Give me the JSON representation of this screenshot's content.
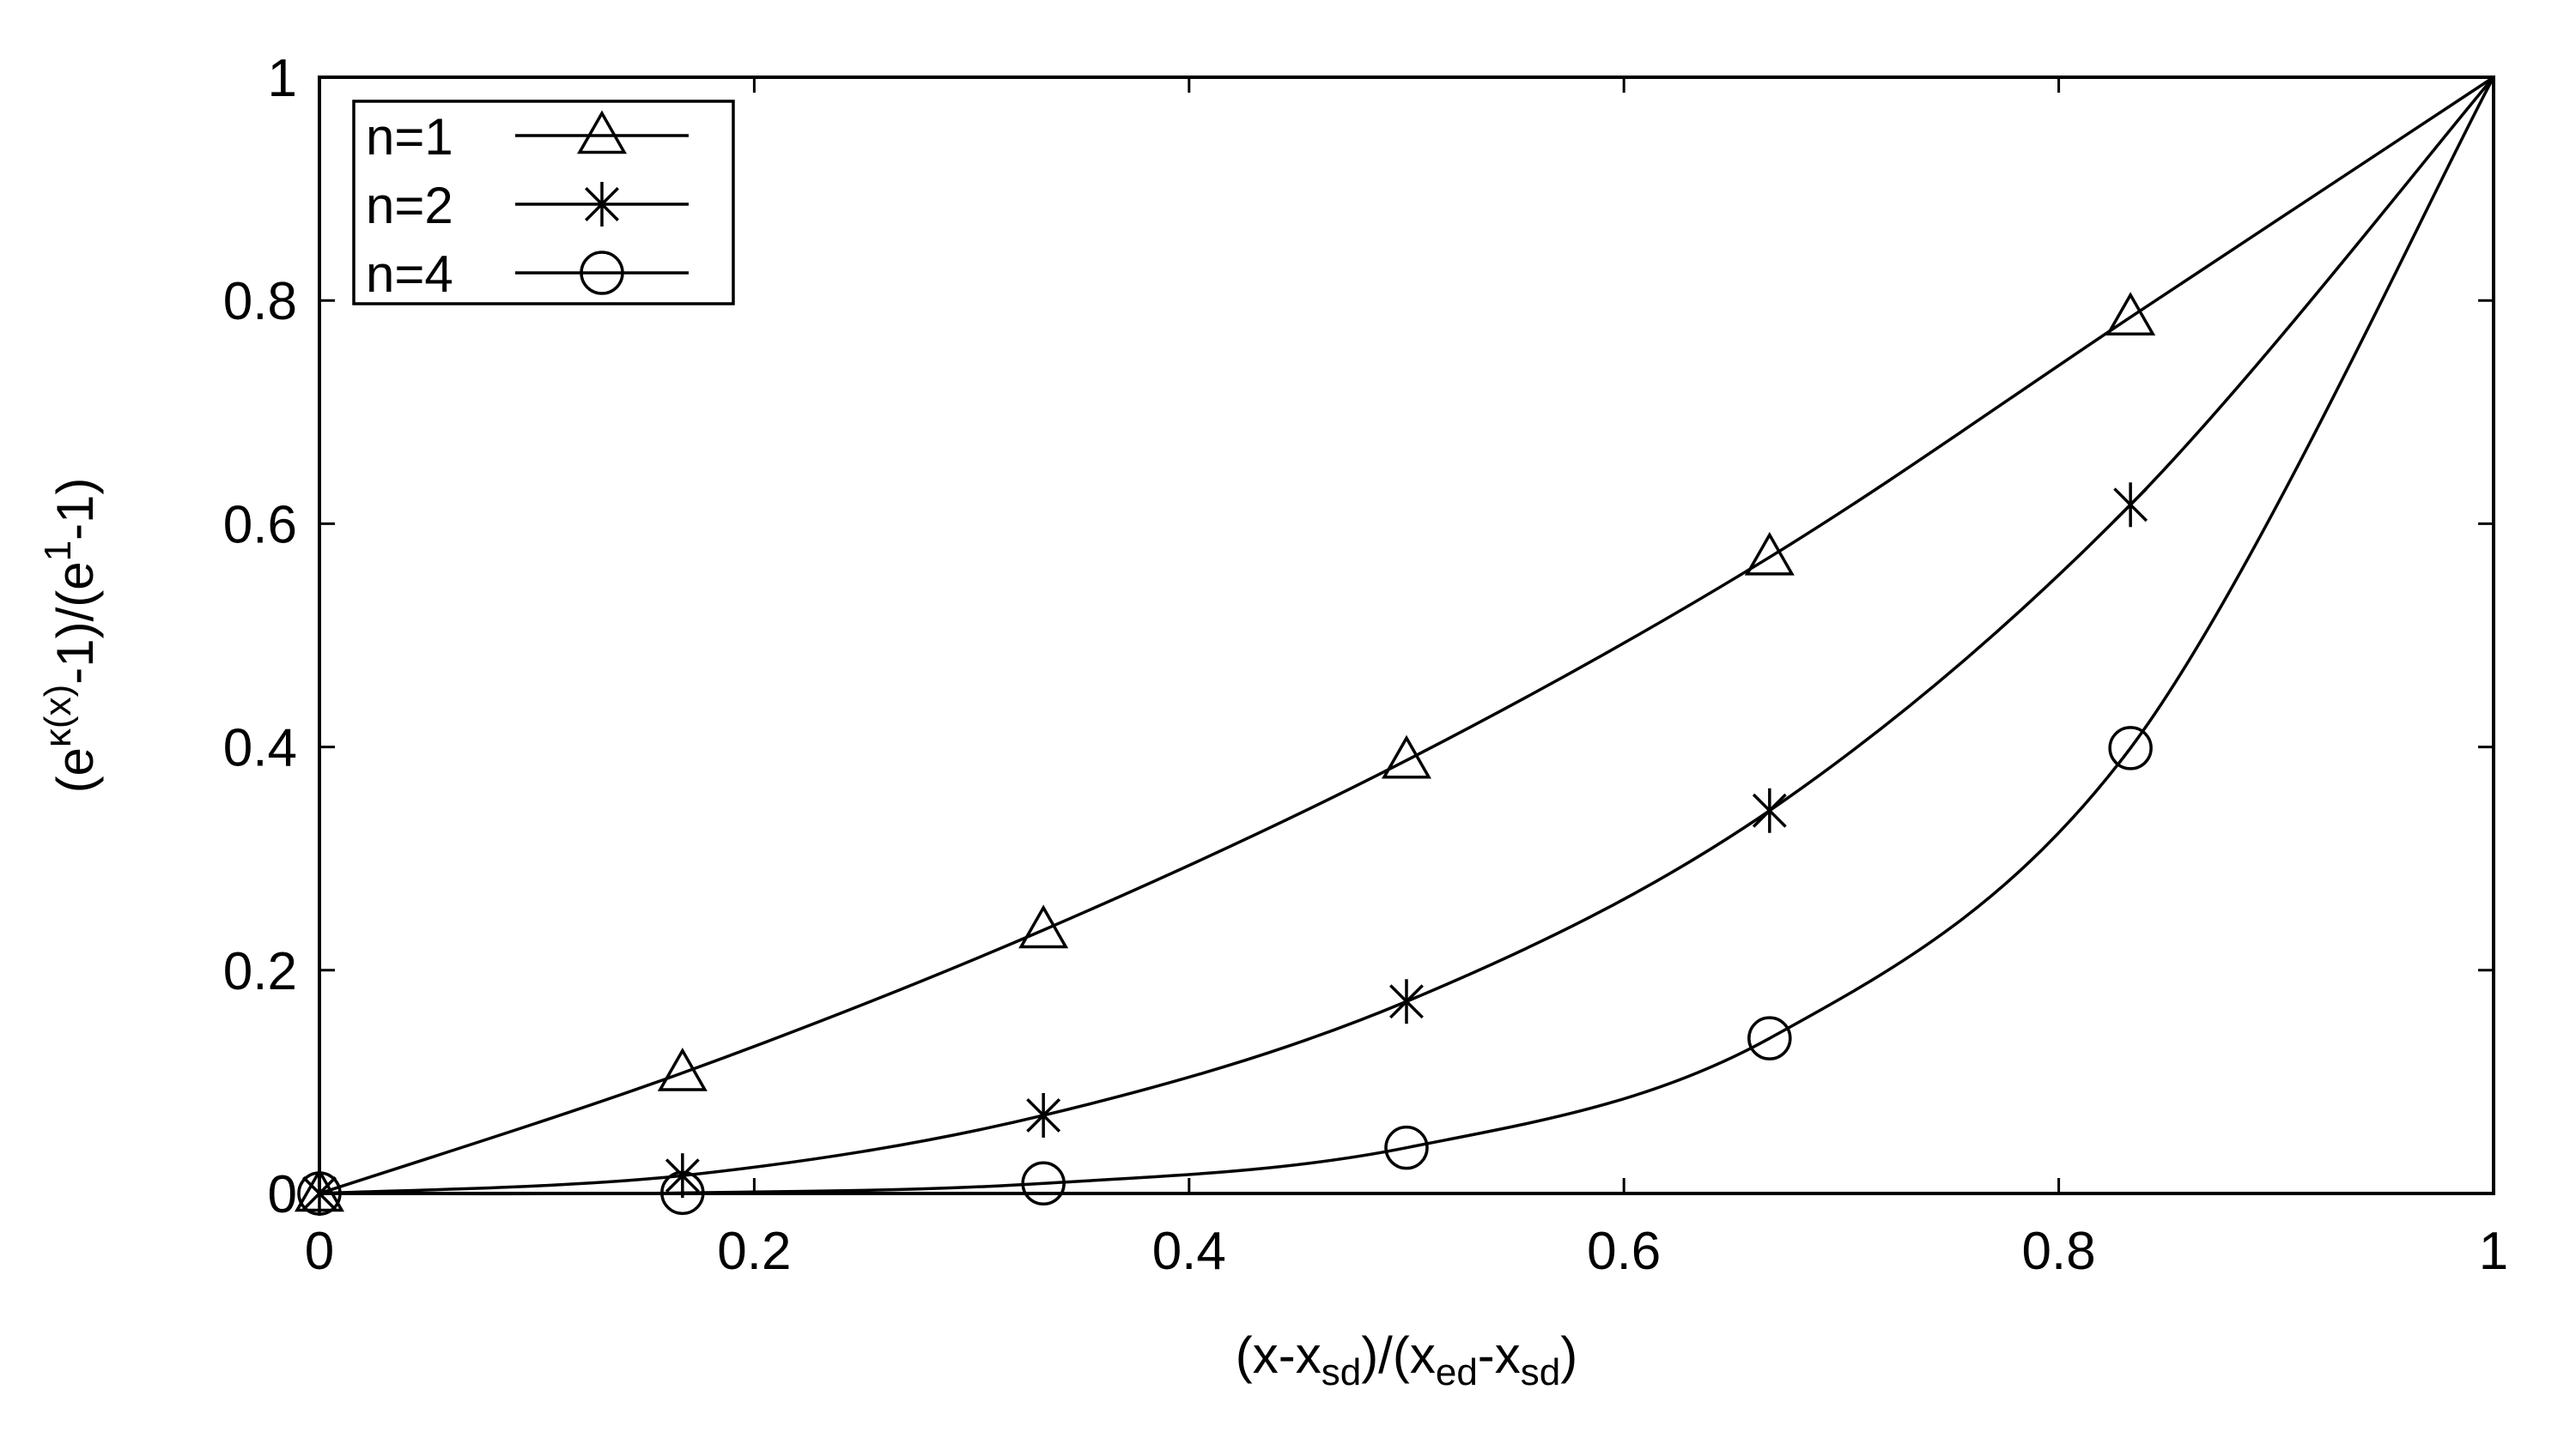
{
  "chart_data": {
    "type": "line",
    "title": "",
    "xlabel": {
      "parts": [
        {
          "t": "(x-x"
        },
        {
          "t": "sd",
          "sub": true
        },
        {
          "t": ")/(x"
        },
        {
          "t": "ed",
          "sub": true
        },
        {
          "t": "-x"
        },
        {
          "t": "sd",
          "sub": true
        },
        {
          "t": ")"
        }
      ]
    },
    "ylabel": {
      "parts": [
        {
          "t": "(e"
        },
        {
          "t": "κ(x)",
          "sup": true
        },
        {
          "t": "-1)/(e"
        },
        {
          "t": "1",
          "sup": true
        },
        {
          "t": "-1)"
        }
      ]
    },
    "xlim": [
      0,
      1
    ],
    "ylim": [
      0,
      1
    ],
    "xticks": [
      0,
      0.2,
      0.4,
      0.6,
      0.8,
      1
    ],
    "xtick_labels": [
      "0",
      "0.2",
      "0.4",
      "0.6",
      "0.8",
      "1"
    ],
    "yticks": [
      0,
      0.2,
      0.4,
      0.6,
      0.8,
      1
    ],
    "ytick_labels": [
      "0",
      "0.2",
      "0.4",
      "0.6",
      "0.8",
      "1"
    ],
    "grid": false,
    "legend_position": "top-left",
    "line_color": "#000000",
    "series": [
      {
        "name": "n=1",
        "marker": "triangle",
        "x": [
          0,
          0.167,
          0.333,
          0.5,
          0.667,
          0.833
        ],
        "y": [
          0,
          0.108,
          0.236,
          0.388,
          0.57,
          0.785
        ]
      },
      {
        "name": "n=2",
        "marker": "star",
        "x": [
          0,
          0.167,
          0.333,
          0.5,
          0.667,
          0.833
        ],
        "y": [
          0,
          0.016,
          0.07,
          0.172,
          0.343,
          0.617
        ]
      },
      {
        "name": "n=4",
        "marker": "circle",
        "x": [
          0,
          0.167,
          0.333,
          0.5,
          0.667,
          0.833
        ],
        "y": [
          0,
          0.0005,
          0.009,
          0.041,
          0.139,
          0.399
        ]
      }
    ]
  }
}
